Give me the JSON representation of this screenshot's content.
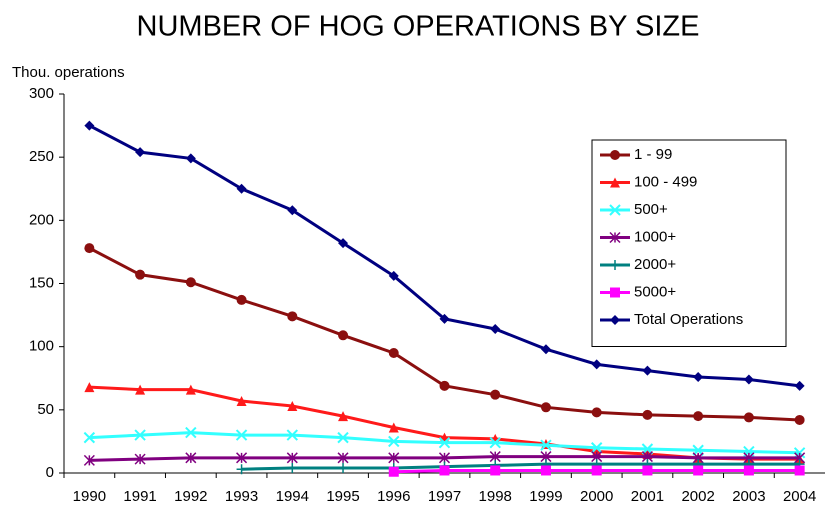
{
  "chart_data": {
    "type": "line",
    "title": "NUMBER OF HOG OPERATIONS BY SIZE",
    "y_label": "Thou. operations",
    "categories": [
      "1990",
      "1991",
      "1992",
      "1993",
      "1994",
      "1995",
      "1996",
      "1997",
      "1998",
      "1999",
      "2000",
      "2001",
      "2002",
      "2003",
      "2004"
    ],
    "ylim": [
      0,
      300
    ],
    "yticks": [
      0,
      50,
      100,
      150,
      200,
      250,
      300
    ],
    "grid": false,
    "legend": "upper right",
    "series": [
      {
        "name": "1 - 99",
        "color": "#8b0f0f",
        "marker": "circle",
        "values": [
          178,
          157,
          151,
          137,
          124,
          109,
          95,
          69,
          62,
          52,
          48,
          46,
          45,
          44,
          42
        ]
      },
      {
        "name": "100 - 499",
        "color": "#ff1a1a",
        "marker": "triangle",
        "values": [
          68,
          66,
          66,
          57,
          53,
          45,
          36,
          28,
          27,
          23,
          17,
          15,
          12,
          11,
          11
        ]
      },
      {
        "name": "500+",
        "color": "#33ffff",
        "marker": "x",
        "values": [
          28,
          30,
          32,
          30,
          30,
          28,
          25,
          24,
          24,
          22,
          20,
          19,
          18,
          17,
          16
        ]
      },
      {
        "name": "1000+",
        "color": "#800080",
        "marker": "star",
        "values": [
          10,
          11,
          12,
          12,
          12,
          12,
          12,
          12,
          13,
          13,
          13,
          13,
          12,
          12,
          12
        ]
      },
      {
        "name": "2000+",
        "color": "#008080",
        "marker": "plus",
        "values": [
          null,
          null,
          null,
          3,
          4,
          4,
          4,
          5,
          6,
          7,
          7,
          7,
          7,
          7,
          7
        ]
      },
      {
        "name": "5000+",
        "color": "#ff00ff",
        "marker": "square",
        "values": [
          null,
          null,
          null,
          null,
          null,
          null,
          1,
          2,
          2,
          2,
          2,
          2,
          2,
          2,
          2
        ]
      },
      {
        "name": "Total Operations",
        "color": "#000080",
        "marker": "diamond",
        "values": [
          275,
          254,
          249,
          225,
          208,
          182,
          156,
          122,
          114,
          98,
          86,
          81,
          76,
          74,
          69
        ]
      }
    ]
  }
}
